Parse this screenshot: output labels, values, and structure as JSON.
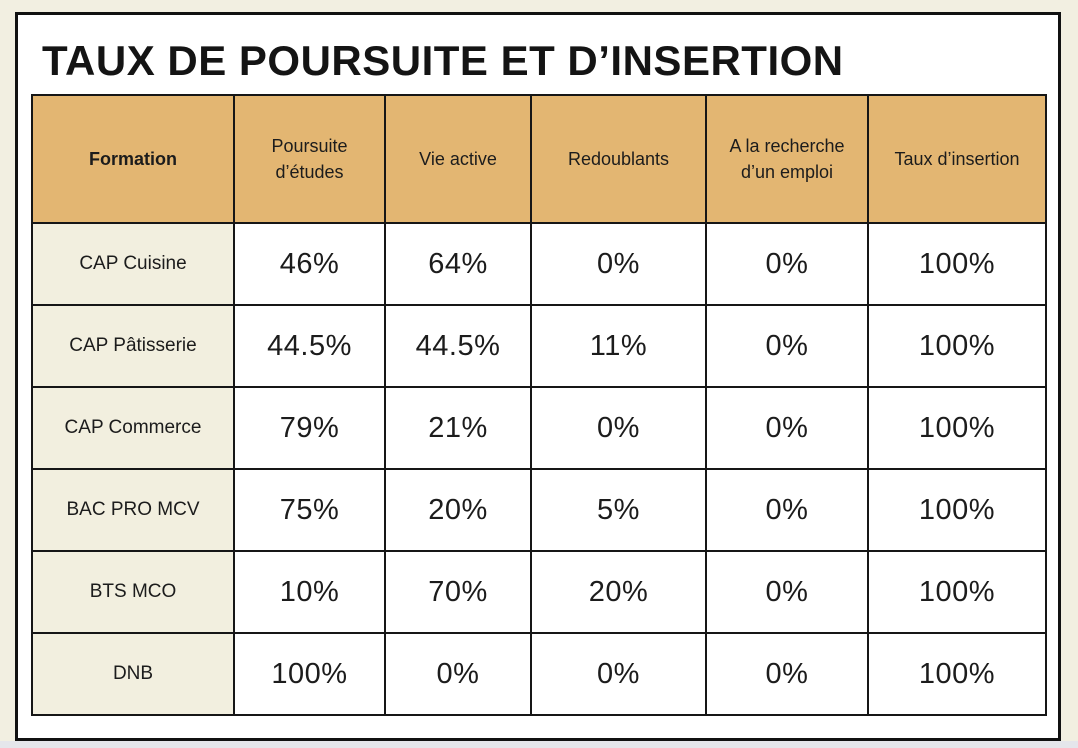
{
  "page": {
    "title": "TAUX DE POURSUITE ET D’INSERTION"
  },
  "colors": {
    "page_background": "#f2efe1",
    "panel_background": "#ffffff",
    "panel_border": "#111111",
    "header_cell_background": "#e3b672",
    "row_label_background": "#f2efdf",
    "cell_border": "#161616",
    "viewer_strip": "#e5e6eb",
    "text": "#1c1c1c"
  },
  "chart_data": {
    "type": "table",
    "title": "TAUX DE POURSUITE ET D’INSERTION",
    "columns": [
      "Formation",
      "Poursuite d’études",
      "Vie active",
      "Redoublants",
      "A la recherche d’un emploi",
      "Taux d’insertion"
    ],
    "rows": [
      {
        "formation": "CAP Cuisine",
        "values": [
          "46%",
          "64%",
          "0%",
          "0%",
          "100%"
        ]
      },
      {
        "formation": "CAP Pâtisserie",
        "values": [
          "44.5%",
          "44.5%",
          "11%",
          "0%",
          "100%"
        ]
      },
      {
        "formation": "CAP Commerce",
        "values": [
          "79%",
          "21%",
          "0%",
          "0%",
          "100%"
        ]
      },
      {
        "formation": "BAC PRO MCV",
        "values": [
          "75%",
          "20%",
          "5%",
          "0%",
          "100%"
        ]
      },
      {
        "formation": "BTS MCO",
        "values": [
          "10%",
          "70%",
          "20%",
          "0%",
          "100%"
        ]
      },
      {
        "formation": "DNB",
        "values": [
          "100%",
          "0%",
          "0%",
          "0%",
          "100%"
        ]
      }
    ]
  }
}
